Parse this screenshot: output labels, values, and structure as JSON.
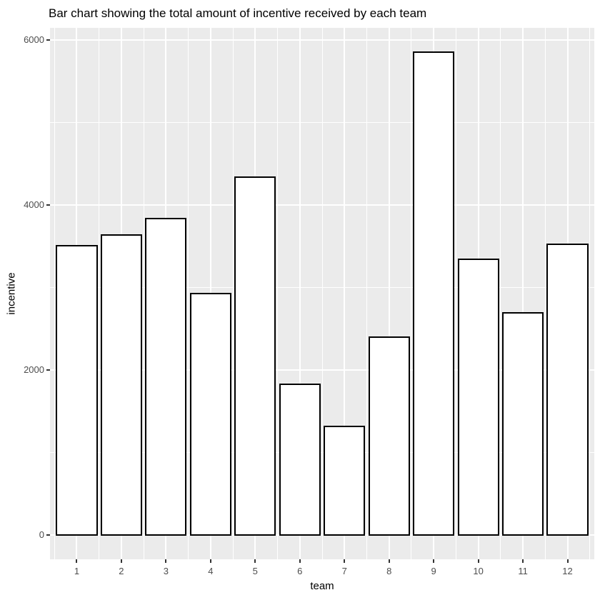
{
  "chart_data": {
    "type": "bar",
    "title": "Bar chart showing the total amount of incentive received by each team",
    "xlabel": "team",
    "ylabel": "incentive",
    "categories": [
      "1",
      "2",
      "3",
      "4",
      "5",
      "6",
      "7",
      "8",
      "9",
      "10",
      "11",
      "12"
    ],
    "values": [
      3510,
      3635,
      3835,
      2925,
      4340,
      1825,
      1320,
      2400,
      5855,
      3340,
      2690,
      3525
    ],
    "yticks": [
      0,
      2000,
      4000,
      6000
    ],
    "ytick_labels": [
      "0",
      "2000",
      "4000",
      "6000"
    ],
    "yminor": [
      1000,
      3000,
      5000
    ],
    "ylim": [
      0,
      6000
    ],
    "y_expansion": 0.05,
    "bar_width_ratio": 0.9,
    "grid": true,
    "legend": "none",
    "colors": {
      "panel_bg": "#EBEBEB",
      "grid": "#FFFFFF",
      "bar_fill": "#FFFFFF",
      "bar_stroke": "#000000",
      "tick_mark": "#333333",
      "tick_label": "#4D4D4D",
      "axis_title": "#000000",
      "title": "#000000"
    }
  }
}
